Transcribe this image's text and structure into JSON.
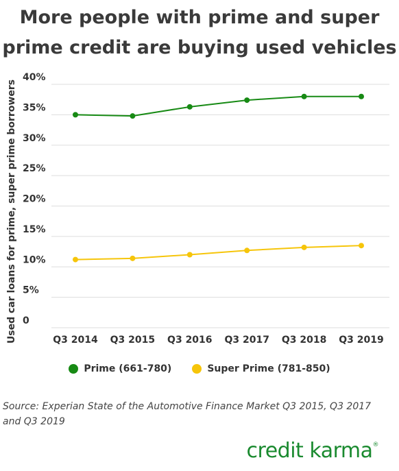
{
  "title_lines": [
    "More people with prime and super",
    "prime credit are buying used vehicles"
  ],
  "source": "Source: Experian State of the Automotive Finance Market Q3 2015, Q3 2017 and Q3 2019",
  "brand": "credit karma",
  "brand_mark": "®",
  "colors": {
    "prime": "#178a14",
    "super_prime": "#f6c50a",
    "grid": "#dddddd",
    "brand": "#1a8a2f"
  },
  "chart_data": {
    "type": "line",
    "title": "More people with prime and super prime credit are buying used vehicles",
    "xlabel": "",
    "ylabel": "Used car loans for prime, super prime borrowers",
    "categories": [
      "Q3 2014",
      "Q3 2015",
      "Q3 2016",
      "Q3 2017",
      "Q3 2018",
      "Q3 2019"
    ],
    "ylim": [
      0,
      40
    ],
    "yticks": [
      0,
      5,
      10,
      15,
      20,
      25,
      30,
      35,
      40
    ],
    "ytick_labels": [
      "0",
      "5%",
      "10%",
      "15%",
      "20%",
      "25%",
      "30%",
      "35%",
      "40%"
    ],
    "grid": true,
    "legend_position": "bottom",
    "series": [
      {
        "name": "Prime (661-780)",
        "color": "#178a14",
        "values": [
          35.0,
          34.8,
          36.3,
          37.4,
          38.0,
          38.0
        ]
      },
      {
        "name": "Super Prime (781-850)",
        "color": "#f6c50a",
        "values": [
          11.2,
          11.4,
          12.0,
          12.7,
          13.2,
          13.5
        ]
      }
    ]
  }
}
